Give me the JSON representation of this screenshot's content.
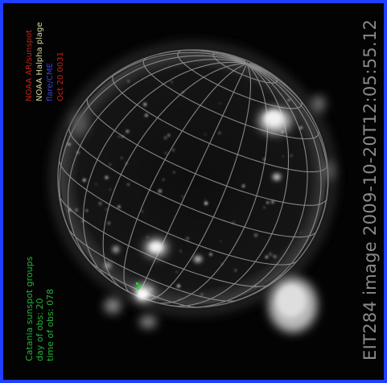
{
  "image": {
    "caption": "EIT284 image 2009-10-20T12:05:55.12",
    "legend": {
      "active_regions": "NOAA AR/sunspot",
      "halpha_plage": "NOAA Halpha plage",
      "flare": "flare/CME",
      "date": "Oct 20 0031"
    },
    "catania": {
      "line1": "Catania sunspot groups",
      "line2": "day of obs: 20",
      "line3": "time of obs: 078"
    },
    "colors": {
      "border": "#1f3fff",
      "grid": "#9a9a9a",
      "caption": "#8a8a8a",
      "legend_red": "#c2241c",
      "legend_yellow": "#d8d8a0",
      "legend_blue": "#3a42d8",
      "catania_green": "#22b43a"
    }
  }
}
